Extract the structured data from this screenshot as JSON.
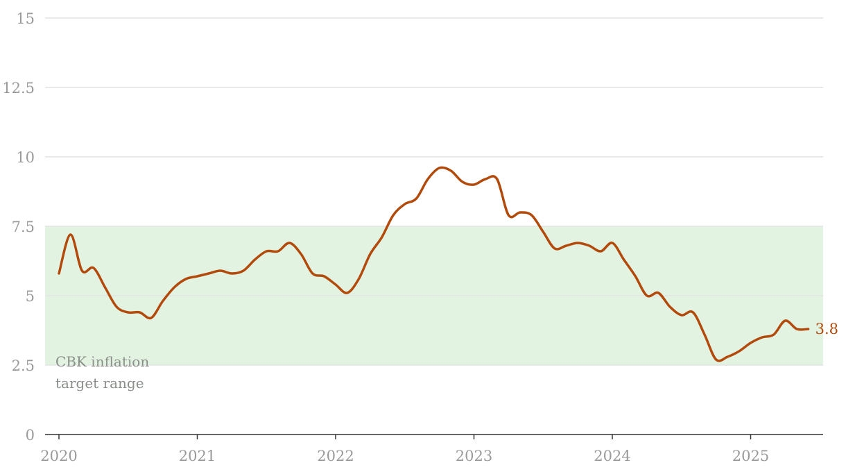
{
  "chart_data": {
    "type": "line",
    "title": "",
    "xlabel": "",
    "ylabel": "",
    "ylim": [
      0,
      15
    ],
    "y_ticks": [
      "0",
      "2.5",
      "5",
      "7.5",
      "10",
      "12.5",
      "15"
    ],
    "x_ticks": [
      "2020",
      "2021",
      "2022",
      "2023",
      "2024",
      "2025"
    ],
    "grid": "horizontal",
    "colors": {
      "line": "#b24a0c",
      "band": "#e3f3e2",
      "grid": "#e4e4e4",
      "axis": "#333333"
    },
    "target_band": {
      "low": 2.5,
      "high": 7.5,
      "label_line1": "CBK inflation",
      "label_line2": "target range"
    },
    "end_label": "3.8",
    "series": [
      {
        "x": [
          "2020-01",
          "2020-02",
          "2020-03",
          "2020-04",
          "2020-05",
          "2020-06",
          "2020-07",
          "2020-08",
          "2020-09",
          "2020-10",
          "2020-11",
          "2020-12",
          "2021-01",
          "2021-02",
          "2021-03",
          "2021-04",
          "2021-05",
          "2021-06",
          "2021-07",
          "2021-08",
          "2021-09",
          "2021-10",
          "2021-11",
          "2021-12",
          "2022-01",
          "2022-02",
          "2022-03",
          "2022-04",
          "2022-05",
          "2022-06",
          "2022-07",
          "2022-08",
          "2022-09",
          "2022-10",
          "2022-11",
          "2022-12",
          "2023-01",
          "2023-02",
          "2023-03",
          "2023-04",
          "2023-05",
          "2023-06",
          "2023-07",
          "2023-08",
          "2023-09",
          "2023-10",
          "2023-11",
          "2023-12",
          "2024-01",
          "2024-02",
          "2024-03",
          "2024-04",
          "2024-05",
          "2024-06",
          "2024-07",
          "2024-08",
          "2024-09",
          "2024-10",
          "2024-11",
          "2024-12",
          "2025-01",
          "2025-02",
          "2025-03",
          "2025-04",
          "2025-05",
          "2025-06"
        ],
        "values": [
          5.8,
          7.2,
          5.9,
          6.0,
          5.3,
          4.6,
          4.4,
          4.4,
          4.2,
          4.8,
          5.3,
          5.6,
          5.7,
          5.8,
          5.9,
          5.8,
          5.9,
          6.3,
          6.6,
          6.6,
          6.9,
          6.5,
          5.8,
          5.7,
          5.4,
          5.1,
          5.6,
          6.5,
          7.1,
          7.9,
          8.3,
          8.5,
          9.2,
          9.6,
          9.5,
          9.1,
          9.0,
          9.2,
          9.2,
          7.9,
          8.0,
          7.9,
          7.3,
          6.7,
          6.8,
          6.9,
          6.8,
          6.6,
          6.9,
          6.3,
          5.7,
          5.0,
          5.1,
          4.6,
          4.3,
          4.4,
          3.6,
          2.7,
          2.8,
          3.0,
          3.3,
          3.5,
          3.6,
          4.1,
          3.8,
          3.8
        ]
      }
    ]
  }
}
